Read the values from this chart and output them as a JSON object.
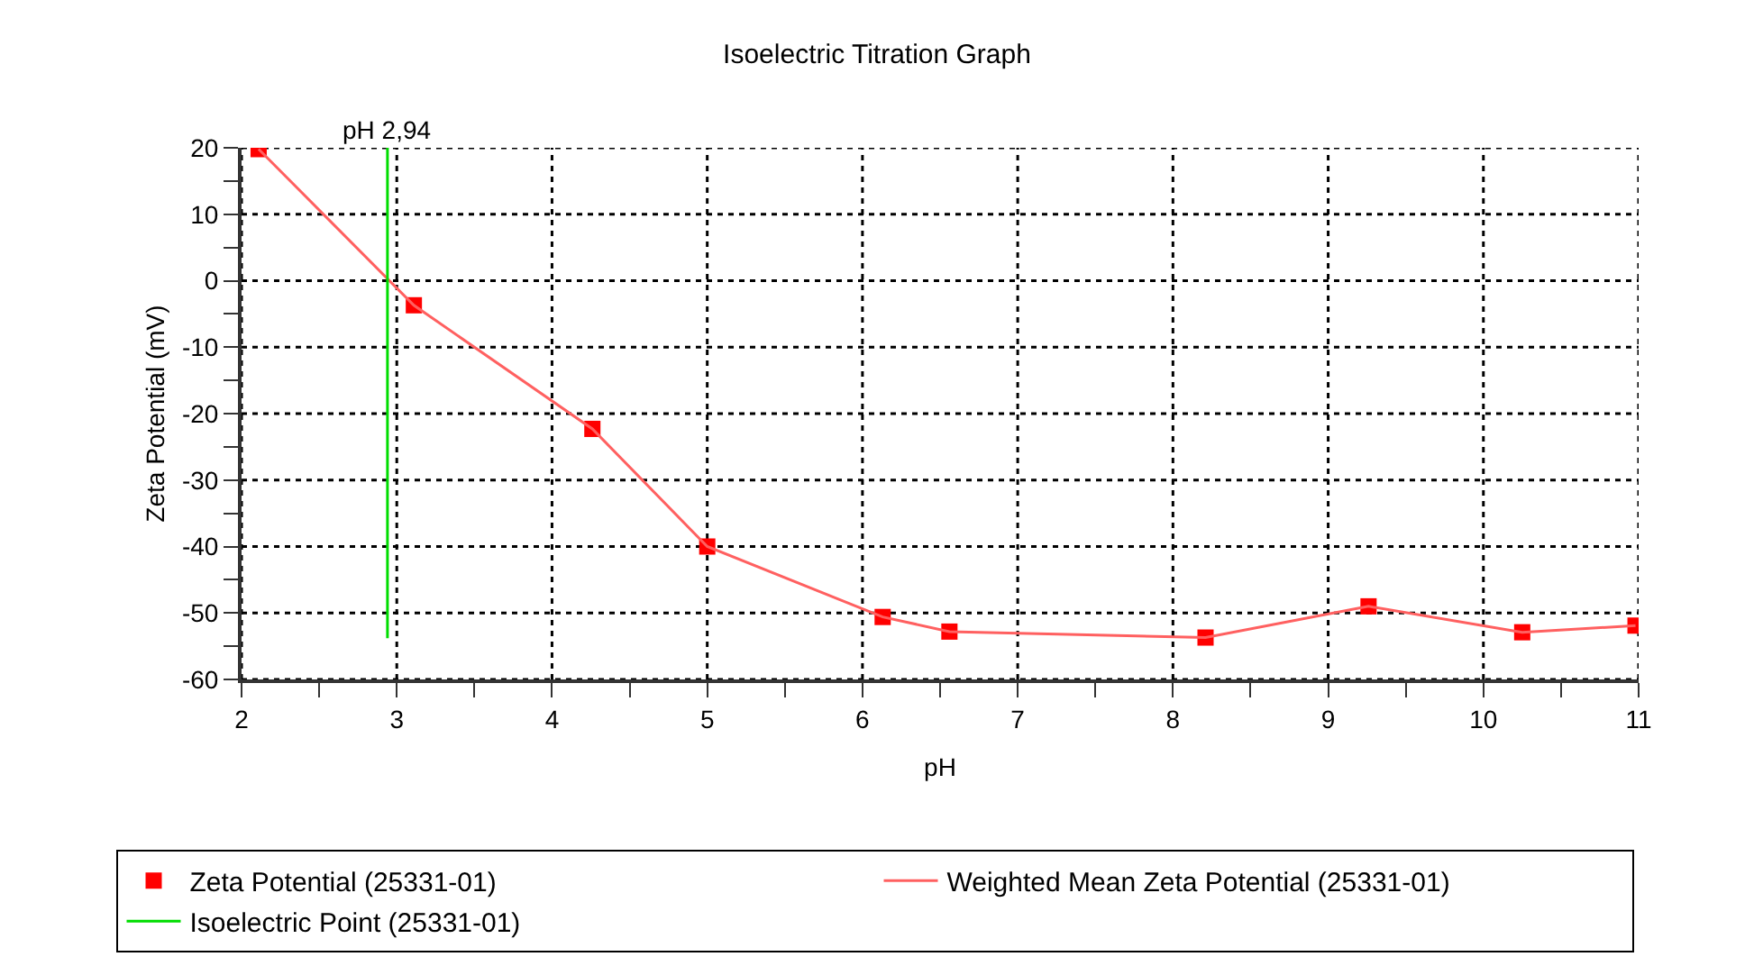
{
  "chart_data": {
    "type": "scatter",
    "title": "Isoelectric Titration Graph",
    "xlabel": "pH",
    "ylabel": "Zeta Potential (mV)",
    "series": [
      {
        "name": "Zeta Potential (25331-01)",
        "marker": "square",
        "color": "#ff0000",
        "x": [
          2.11,
          3.11,
          4.26,
          5.0,
          6.13,
          6.56,
          8.21,
          9.26,
          10.25,
          10.98
        ],
        "values": [
          19.8,
          -3.7,
          -22.3,
          -40,
          -50.6,
          -52.8,
          -53.7,
          -49,
          -52.9,
          -51.9
        ]
      },
      {
        "name": "Weighted Mean Zeta Potential (25331-01)",
        "type": "line",
        "marker": "none",
        "color": "#ff6060",
        "x": [
          2.11,
          3.11,
          4.26,
          5.0,
          6.13,
          6.56,
          8.21,
          9.26,
          10.25,
          10.98
        ],
        "values": [
          19.8,
          -3.7,
          -22.3,
          -40,
          -50.6,
          -52.8,
          -53.7,
          -49,
          -52.9,
          -51.9
        ]
      },
      {
        "name": "Isoelectric Point (25331-01)",
        "type": "line",
        "marker": "none",
        "color": "#00dd00",
        "x": [
          2.94,
          2.94
        ],
        "values": [
          -53.8,
          20
        ]
      }
    ],
    "annotations": [
      {
        "text": "pH 2,94",
        "x": 2.94,
        "y": 20
      }
    ],
    "xlim": [
      2,
      11
    ],
    "xticks": [
      2,
      {
        "value": 2.5,
        "label": null
      },
      3,
      {
        "value": 3.5,
        "label": null
      },
      4,
      {
        "value": 4.5,
        "label": null
      },
      5,
      {
        "value": 5.5,
        "label": null
      },
      6,
      {
        "value": 6.5,
        "label": null
      },
      7,
      {
        "value": 7.5,
        "label": null
      },
      8,
      {
        "value": 8.5,
        "label": null
      },
      9,
      {
        "value": 9.5,
        "label": null
      },
      10,
      {
        "value": 10.5,
        "label": null
      },
      11
    ],
    "ylim": [
      -60,
      20
    ],
    "yticks": [
      -60,
      {
        "value": -55,
        "label": null
      },
      -50,
      {
        "value": -45,
        "label": null
      },
      -40,
      {
        "value": -35,
        "label": null
      },
      -30,
      {
        "value": -25,
        "label": null
      },
      -20,
      {
        "value": -15,
        "label": null
      },
      -10,
      {
        "value": -5,
        "label": null
      },
      0,
      {
        "value": 5,
        "label": null
      },
      10,
      {
        "value": 15,
        "label": null
      },
      20
    ],
    "grid": true,
    "legend": "bottom"
  }
}
